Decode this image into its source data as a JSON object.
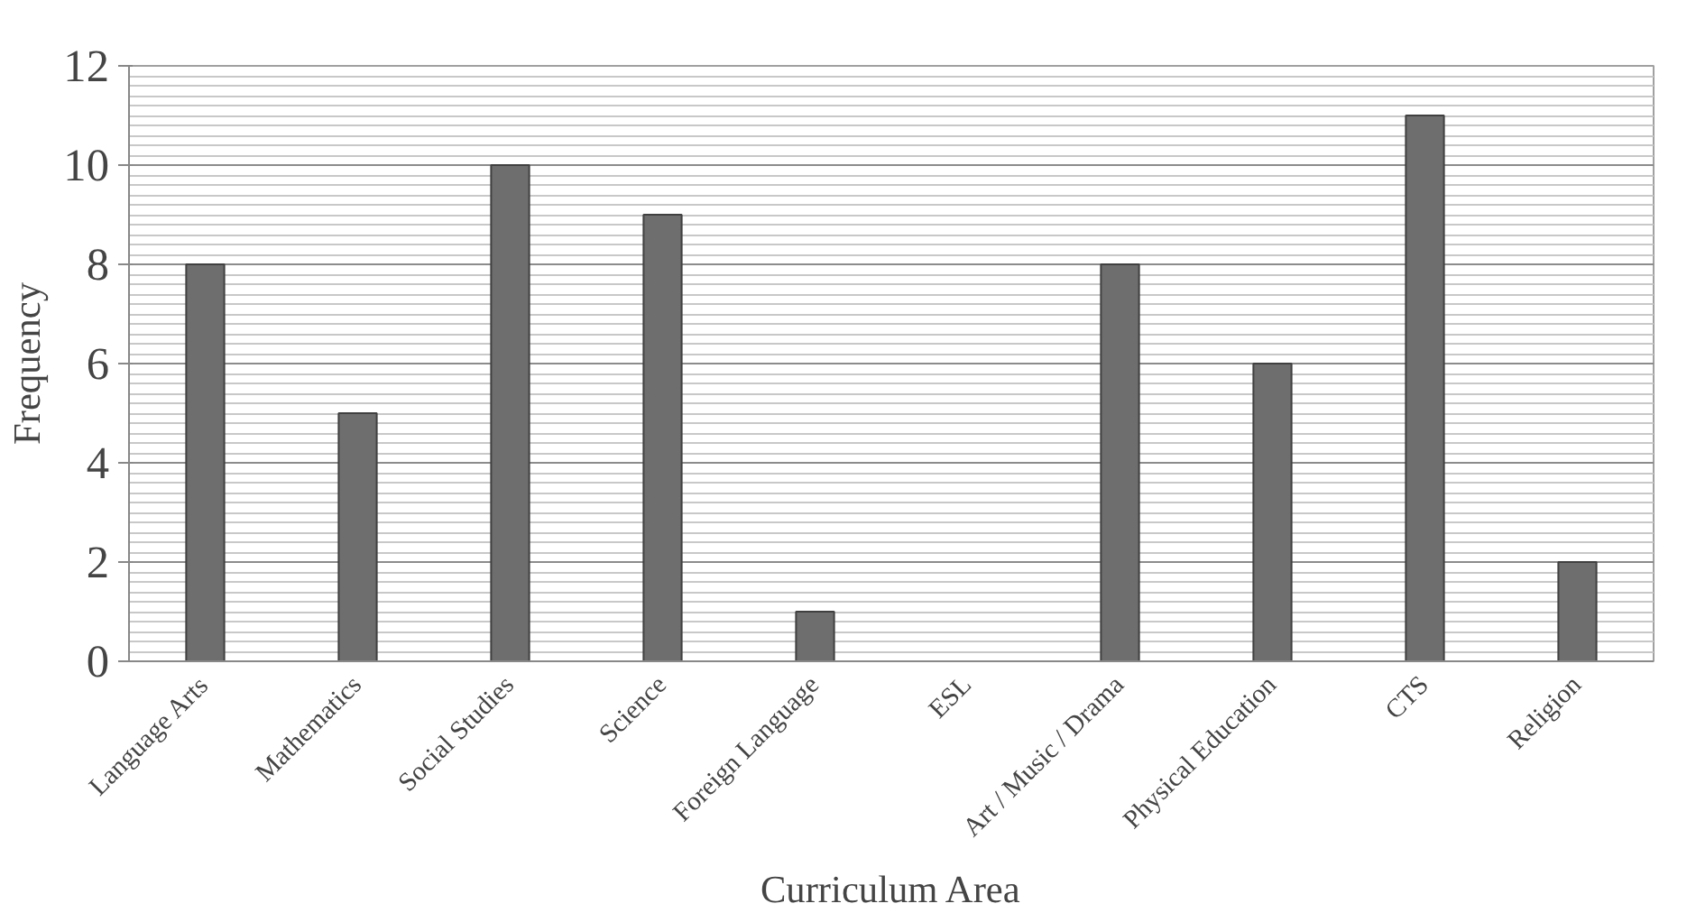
{
  "chart_data": {
    "type": "bar",
    "xlabel": "Curriculum Area",
    "ylabel": "Frequency",
    "categories": [
      "Language Arts",
      "Mathematics",
      "Social Studies",
      "Science",
      "Foreign Language",
      "ESL",
      "Art / Music / Drama",
      "Physical Education",
      "CTS",
      "Religion"
    ],
    "values": [
      8,
      5,
      10,
      9,
      1,
      0,
      8,
      6,
      11,
      2
    ],
    "color": "#6e6e6e",
    "ylim": [
      0,
      12
    ],
    "yticks": [
      0,
      2,
      4,
      6,
      8,
      10,
      12
    ],
    "grid": "y"
  }
}
